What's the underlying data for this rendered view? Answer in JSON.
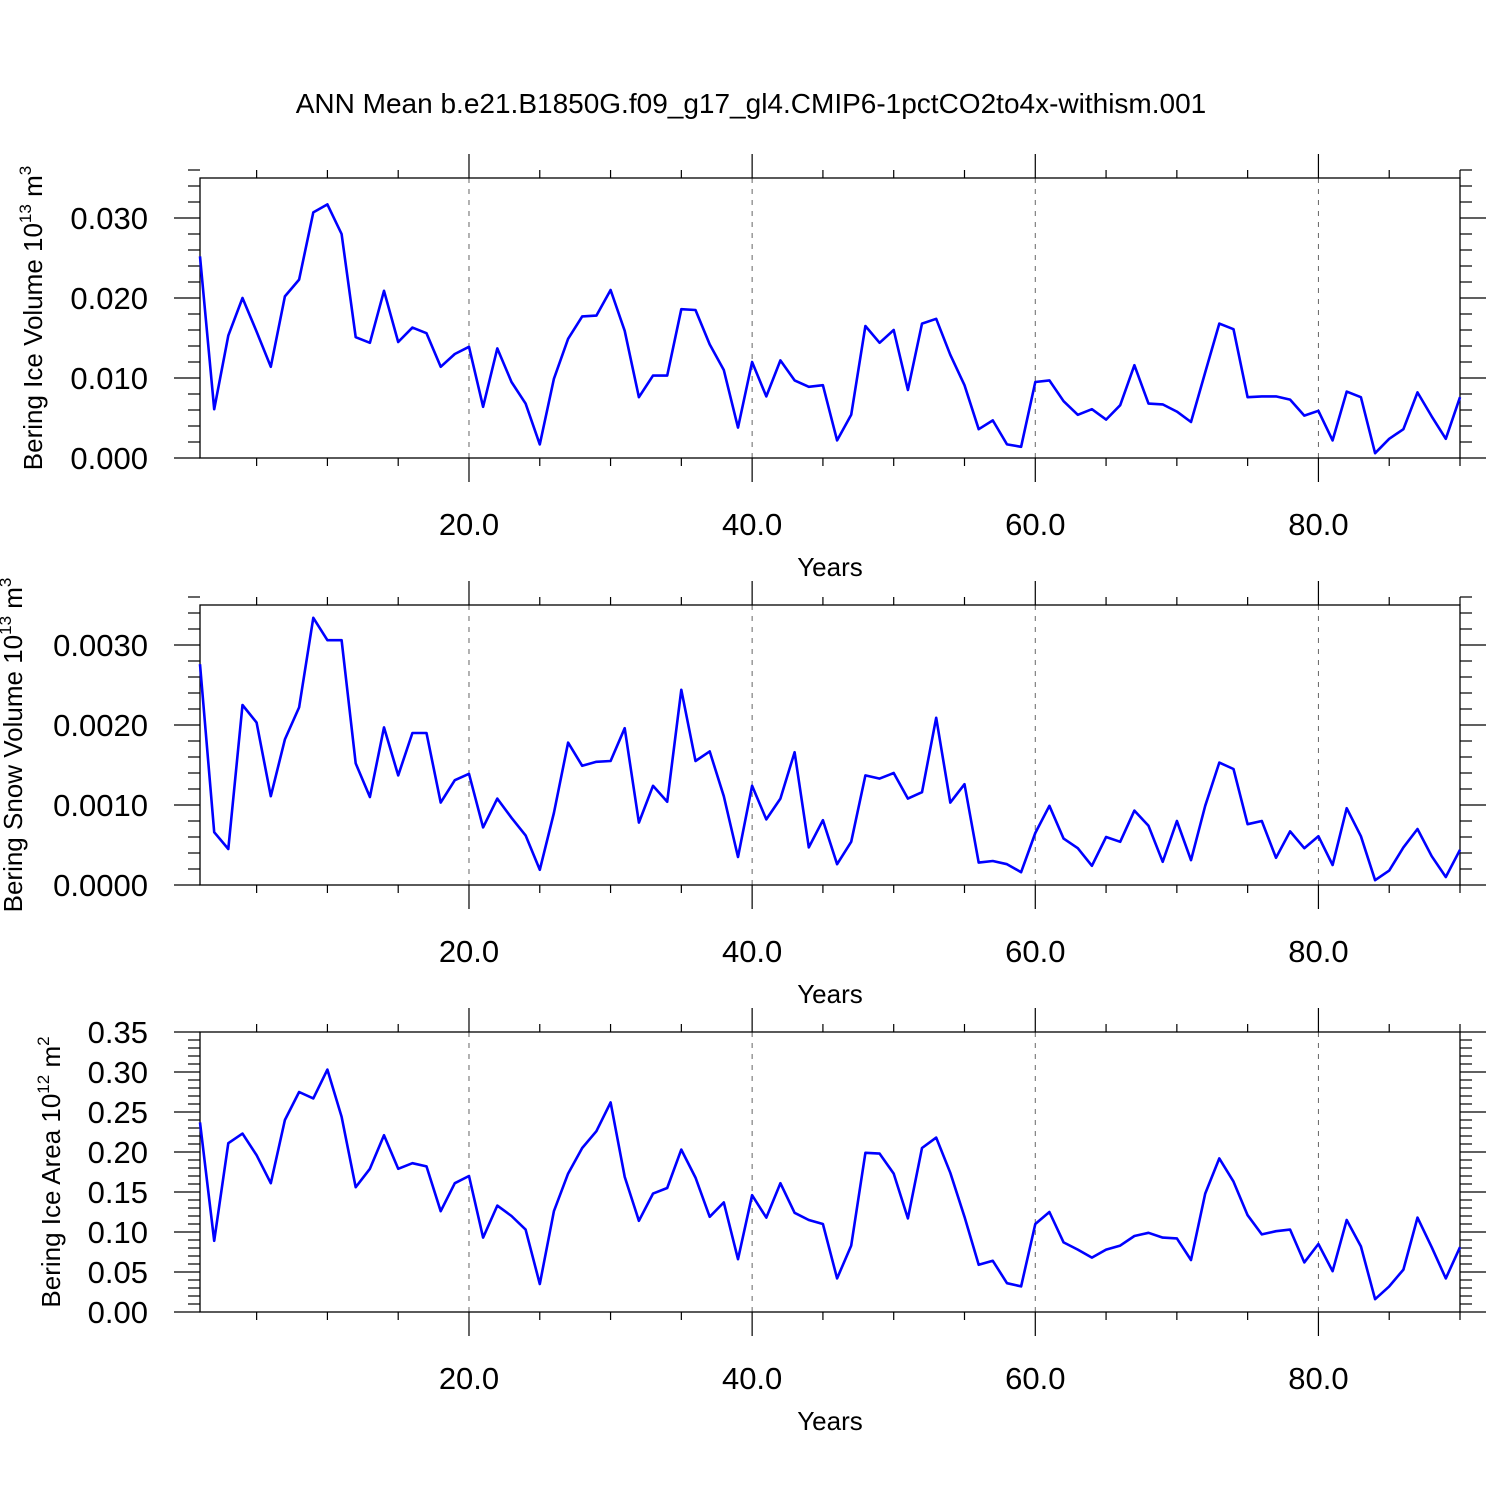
{
  "figure": {
    "title": "ANN Mean b.e21.B1850G.f09_g17_gl4.CMIP6-1pctCO2to4x-withism.001",
    "line_color": "#0000ff"
  },
  "chart_data": [
    {
      "type": "line",
      "ylabel_main": "Bering Ice Volume 10",
      "ylabel_exp": "13",
      "ylabel_unit": " m",
      "ylabel_unit_exp": "3",
      "xlabel": "Years",
      "xlim": [
        1,
        90
      ],
      "ylim": [
        0,
        0.035
      ],
      "x_ticks": [
        20,
        40,
        60,
        80
      ],
      "x_tick_labels": [
        "20.0",
        "40.0",
        "60.0",
        "80.0"
      ],
      "y_ticks": [
        0,
        0.01,
        0.02,
        0.03
      ],
      "y_tick_labels": [
        "0.000",
        "0.010",
        "0.020",
        "0.030"
      ],
      "grid": "x dashed",
      "series": [
        {
          "x_start": 1,
          "values": [
            0.0252,
            0.0061,
            0.0153,
            0.02,
            0.0158,
            0.0114,
            0.0202,
            0.0223,
            0.0307,
            0.0317,
            0.028,
            0.0151,
            0.0144,
            0.0209,
            0.0145,
            0.0163,
            0.0156,
            0.0114,
            0.013,
            0.0139,
            0.0064,
            0.0137,
            0.0095,
            0.0068,
            0.0017,
            0.0099,
            0.0149,
            0.0177,
            0.0178,
            0.021,
            0.0159,
            0.0076,
            0.0103,
            0.0103,
            0.0186,
            0.0185,
            0.0142,
            0.011,
            0.0038,
            0.012,
            0.0077,
            0.0122,
            0.0097,
            0.0089,
            0.0091,
            0.0022,
            0.0054,
            0.0165,
            0.0144,
            0.016,
            0.0085,
            0.0168,
            0.0174,
            0.0129,
            0.0091,
            0.0036,
            0.0047,
            0.0017,
            0.0014,
            0.0095,
            0.0097,
            0.0071,
            0.0054,
            0.0061,
            0.0048,
            0.0066,
            0.0116,
            0.0068,
            0.0067,
            0.0058,
            0.0045,
            0.0107,
            0.0168,
            0.0161,
            0.0076,
            0.0077,
            0.0077,
            0.0073,
            0.0053,
            0.0059,
            0.0022,
            0.0083,
            0.0076,
            0.0006,
            0.0024,
            0.0036,
            0.0082,
            0.0052,
            0.0024,
            0.0076
          ]
        }
      ]
    },
    {
      "type": "line",
      "ylabel_main": "Bering Snow Volume 10",
      "ylabel_exp": "13",
      "ylabel_unit": " m",
      "ylabel_unit_exp": "3",
      "xlabel": "Years",
      "xlim": [
        1,
        90
      ],
      "ylim": [
        0,
        0.0035
      ],
      "x_ticks": [
        20,
        40,
        60,
        80
      ],
      "x_tick_labels": [
        "20.0",
        "40.0",
        "60.0",
        "80.0"
      ],
      "y_ticks": [
        0,
        0.001,
        0.002,
        0.003
      ],
      "y_tick_labels": [
        "0.0000",
        "0.0010",
        "0.0020",
        "0.0030"
      ],
      "grid": "x dashed",
      "series": [
        {
          "x_start": 1,
          "values": [
            0.00276,
            0.00066,
            0.00045,
            0.00225,
            0.00203,
            0.00111,
            0.00182,
            0.00222,
            0.00334,
            0.00306,
            0.00306,
            0.00152,
            0.0011,
            0.00197,
            0.00137,
            0.0019,
            0.0019,
            0.00103,
            0.00131,
            0.00139,
            0.00072,
            0.00108,
            0.00084,
            0.00062,
            0.00019,
            0.0009,
            0.00178,
            0.00149,
            0.00154,
            0.00155,
            0.00196,
            0.00078,
            0.00124,
            0.00104,
            0.00244,
            0.00155,
            0.00167,
            0.00111,
            0.00035,
            0.00124,
            0.00082,
            0.00108,
            0.00166,
            0.00047,
            0.00081,
            0.00026,
            0.00054,
            0.00137,
            0.00133,
            0.0014,
            0.00108,
            0.00116,
            0.00209,
            0.00103,
            0.00126,
            0.00028,
            0.0003,
            0.00026,
            0.00016,
            0.00065,
            0.00099,
            0.00058,
            0.00046,
            0.00024,
            0.0006,
            0.00054,
            0.00093,
            0.00074,
            0.00029,
            0.0008,
            0.00031,
            0.00099,
            0.00153,
            0.00145,
            0.00076,
            0.0008,
            0.00034,
            0.00067,
            0.00046,
            0.00061,
            0.00025,
            0.00096,
            0.00061,
            6e-05,
            0.00018,
            0.00047,
            0.0007,
            0.00036,
            0.0001,
            0.00044
          ]
        }
      ]
    },
    {
      "type": "line",
      "ylabel_main": "Bering Ice Area 10",
      "ylabel_exp": "12",
      "ylabel_unit": " m",
      "ylabel_unit_exp": "2",
      "xlabel": "Years",
      "xlim": [
        1,
        90
      ],
      "ylim": [
        0,
        0.35
      ],
      "x_ticks": [
        20,
        40,
        60,
        80
      ],
      "x_tick_labels": [
        "20.0",
        "40.0",
        "60.0",
        "80.0"
      ],
      "y_ticks": [
        0,
        0.05,
        0.1,
        0.15,
        0.2,
        0.25,
        0.3,
        0.35
      ],
      "y_tick_labels": [
        "0.00",
        "0.05",
        "0.10",
        "0.15",
        "0.20",
        "0.25",
        "0.30",
        "0.35"
      ],
      "grid": "x dashed",
      "series": [
        {
          "x_start": 1,
          "values": [
            0.237,
            0.089,
            0.211,
            0.223,
            0.196,
            0.161,
            0.24,
            0.275,
            0.267,
            0.303,
            0.244,
            0.156,
            0.179,
            0.221,
            0.179,
            0.186,
            0.182,
            0.126,
            0.161,
            0.17,
            0.093,
            0.133,
            0.12,
            0.103,
            0.035,
            0.126,
            0.173,
            0.205,
            0.226,
            0.262,
            0.169,
            0.114,
            0.148,
            0.155,
            0.203,
            0.168,
            0.119,
            0.137,
            0.066,
            0.146,
            0.118,
            0.161,
            0.124,
            0.115,
            0.11,
            0.042,
            0.083,
            0.199,
            0.198,
            0.173,
            0.117,
            0.205,
            0.218,
            0.174,
            0.119,
            0.059,
            0.064,
            0.036,
            0.032,
            0.11,
            0.125,
            0.087,
            0.078,
            0.068,
            0.078,
            0.083,
            0.095,
            0.099,
            0.093,
            0.092,
            0.065,
            0.148,
            0.192,
            0.163,
            0.121,
            0.097,
            0.101,
            0.103,
            0.062,
            0.085,
            0.051,
            0.115,
            0.082,
            0.016,
            0.032,
            0.053,
            0.118,
            0.081,
            0.042,
            0.081
          ]
        }
      ]
    }
  ]
}
